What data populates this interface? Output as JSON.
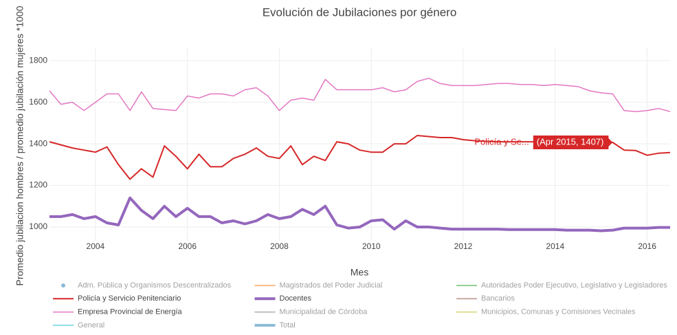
{
  "chart_data": {
    "type": "line",
    "title": "Evolución de Jubilaciones por género",
    "x_label": "Mes",
    "y_label": "Promedio jubilacion hombres / promedio jubilación mujeres *1000",
    "x": [
      2003,
      2003.25,
      2003.5,
      2003.75,
      2004,
      2004.25,
      2004.5,
      2004.75,
      2005,
      2005.25,
      2005.5,
      2005.75,
      2006,
      2006.25,
      2006.5,
      2006.75,
      2007,
      2007.25,
      2007.5,
      2007.75,
      2008,
      2008.25,
      2008.5,
      2008.75,
      2009,
      2009.25,
      2009.5,
      2009.75,
      2010,
      2010.25,
      2010.5,
      2010.75,
      2011,
      2011.25,
      2011.5,
      2011.75,
      2012,
      2012.25,
      2012.5,
      2012.75,
      2013,
      2013.25,
      2013.5,
      2013.75,
      2014,
      2014.25,
      2014.5,
      2014.75,
      2015,
      2015.25,
      2015.5,
      2015.75,
      2016,
      2016.25,
      2016.5
    ],
    "xlim": [
      2003,
      2016.5
    ],
    "xticks": [
      2004,
      2006,
      2008,
      2010,
      2012,
      2014,
      2016
    ],
    "ylim": [
      934,
      1860
    ],
    "yticks": [
      1000,
      1200,
      1400,
      1600,
      1800
    ],
    "grid": true,
    "series": [
      {
        "name": "Adm. Pública y Organismos Descentralizados",
        "color": "#1f77b4",
        "visible": "legendonly",
        "marker": true
      },
      {
        "name": "Magistrados del Poder Judicial",
        "color": "#ff7f0e",
        "visible": "legendonly"
      },
      {
        "name": "Autoridades Poder Ejecutivo, Legislativo y Legisladores",
        "color": "#2ca02c",
        "visible": "legendonly"
      },
      {
        "name": "Policía y Servicio Penitenciario",
        "color": "#d62728",
        "visible": true,
        "width": 2,
        "values": [
          1410,
          1395,
          1380,
          1370,
          1360,
          1385,
          1300,
          1230,
          1280,
          1240,
          1390,
          1340,
          1280,
          1350,
          1290,
          1290,
          1330,
          1350,
          1380,
          1340,
          1330,
          1390,
          1300,
          1340,
          1320,
          1410,
          1400,
          1370,
          1360,
          1360,
          1400,
          1400,
          1440,
          1435,
          1430,
          1430,
          1420,
          1415,
          1412,
          1410,
          1410,
          1410,
          1410,
          1410,
          1410,
          1410,
          1408,
          1407,
          1408,
          1407,
          1370,
          1368,
          1345,
          1355,
          1358
        ]
      },
      {
        "name": "Docentes",
        "color": "#9467bd",
        "visible": true,
        "width": 4,
        "values": [
          1050,
          1050,
          1060,
          1040,
          1050,
          1020,
          1010,
          1140,
          1080,
          1040,
          1100,
          1050,
          1090,
          1050,
          1050,
          1020,
          1030,
          1015,
          1030,
          1060,
          1040,
          1050,
          1085,
          1060,
          1100,
          1010,
          995,
          1000,
          1030,
          1035,
          990,
          1030,
          1000,
          1000,
          995,
          990,
          990,
          990,
          990,
          990,
          988,
          988,
          988,
          988,
          988,
          985,
          985,
          985,
          982,
          985,
          995,
          995,
          995,
          998,
          998
        ]
      },
      {
        "name": "Bancarios",
        "color": "#8c564b",
        "visible": "legendonly"
      },
      {
        "name": "Empresa Provincial de Energía",
        "color": "#e377c2",
        "visible": true,
        "width": 1.5,
        "values": [
          1655,
          1590,
          1600,
          1560,
          1600,
          1640,
          1640,
          1560,
          1650,
          1570,
          1565,
          1560,
          1630,
          1620,
          1640,
          1640,
          1630,
          1660,
          1670,
          1630,
          1560,
          1610,
          1620,
          1610,
          1710,
          1660,
          1660,
          1660,
          1660,
          1670,
          1650,
          1660,
          1700,
          1715,
          1690,
          1680,
          1680,
          1680,
          1685,
          1690,
          1690,
          1685,
          1685,
          1680,
          1685,
          1680,
          1675,
          1655,
          1645,
          1640,
          1560,
          1555,
          1560,
          1570,
          1555
        ]
      },
      {
        "name": "Municipalidad de Córdoba",
        "color": "#7f7f7f",
        "visible": "legendonly"
      },
      {
        "name": "Municipios, Comunas y Comisiones Vecinales",
        "color": "#bcbd22",
        "visible": "legendonly"
      },
      {
        "name": "General",
        "color": "#17becf",
        "visible": "legendonly"
      },
      {
        "name": "Total",
        "color": "#1f77b4",
        "visible": "legendonly",
        "width": 4
      }
    ],
    "hover": {
      "x": 2015.25,
      "y": 1407,
      "name_label": "Policía y Se...",
      "label": "(Apr 2015, 1407)",
      "color": "#d62728"
    }
  }
}
